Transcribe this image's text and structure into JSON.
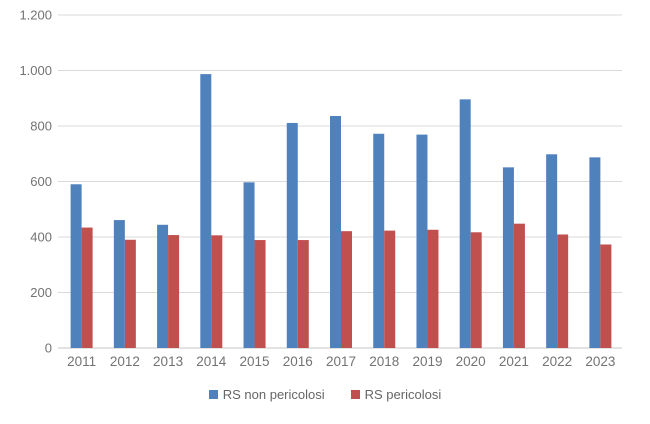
{
  "chart_data": {
    "type": "bar",
    "title": "",
    "xlabel": "",
    "ylabel": "",
    "categories": [
      "2011",
      "2012",
      "2013",
      "2014",
      "2015",
      "2016",
      "2017",
      "2018",
      "2019",
      "2020",
      "2021",
      "2022",
      "2023"
    ],
    "series": [
      {
        "name": "RS non pericolosi",
        "color": "#4F81BD",
        "values": [
          590,
          461,
          444,
          987,
          597,
          811,
          836,
          772,
          769,
          896,
          651,
          698,
          687
        ]
      },
      {
        "name": "RS pericolosi",
        "color": "#C0504D",
        "values": [
          434,
          390,
          407,
          406,
          389,
          389,
          421,
          423,
          426,
          417,
          448,
          409,
          373
        ]
      }
    ],
    "y_axis": {
      "min": 0,
      "max": 1200,
      "tick_interval": 200,
      "tick_labels": [
        "0",
        "200",
        "400",
        "600",
        "800",
        "1.000",
        "1.200"
      ],
      "number_format": "thousands-dot-separator"
    },
    "grid": "horizontal",
    "legend_position": "bottom-center",
    "colors": {
      "gridline": "#D9D9D9",
      "axis_line": "#C6C6C6",
      "tick_text": "#737373",
      "background": "#FFFFFF"
    }
  }
}
